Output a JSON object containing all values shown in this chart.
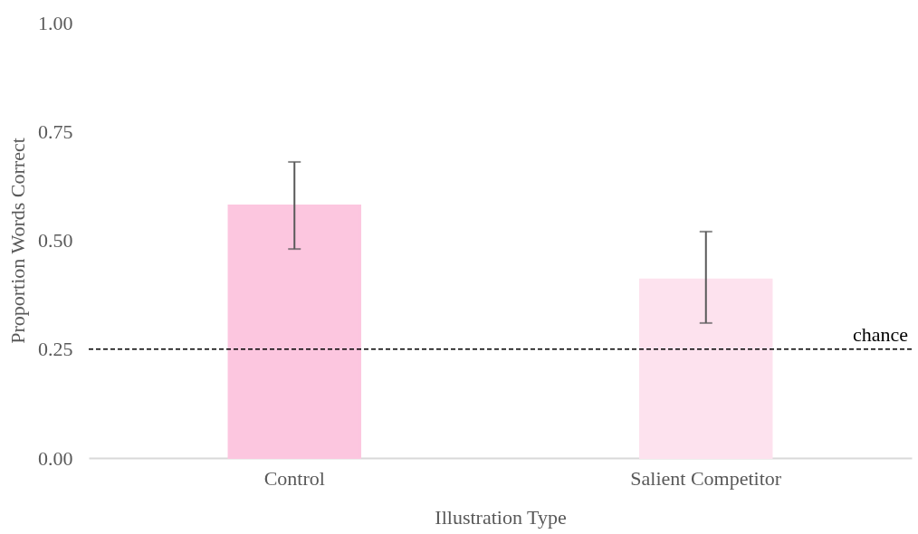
{
  "chart_data": {
    "type": "bar",
    "categories": [
      "Control",
      "Salient Competitor"
    ],
    "values": [
      0.58,
      0.41
    ],
    "errors": [
      [
        0.48,
        0.68
      ],
      [
        0.31,
        0.52
      ]
    ],
    "colors": [
      "#fcc6df",
      "#fde2ee"
    ],
    "xlabel": "Illustration Type",
    "ylabel": "Proportion Words Correct",
    "ylim": [
      0,
      1
    ],
    "yticks": [
      {
        "value": 0,
        "label": "0.00"
      },
      {
        "value": 0.25,
        "label": "0.25"
      },
      {
        "value": 0.5,
        "label": "0.50"
      },
      {
        "value": 0.75,
        "label": "0.75"
      },
      {
        "value": 1,
        "label": "1.00"
      }
    ],
    "ref_lines": [
      {
        "axis": "y",
        "value": 0.25,
        "label": "chance",
        "color": "#000000",
        "line_style": "dashed"
      }
    ],
    "grid": false
  }
}
